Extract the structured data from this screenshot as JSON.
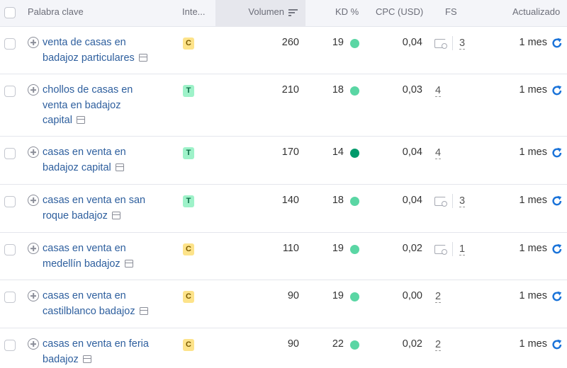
{
  "header": {
    "keyword": "Palabra clave",
    "intent": "Inte...",
    "volume": "Volumen",
    "kd": "KD %",
    "cpc": "CPC (USD)",
    "fs": "FS",
    "updated": "Actualizado"
  },
  "colors": {
    "link": "#2e5f9e",
    "kd_light": "#5ad6a4",
    "kd_dark": "#009a6b",
    "intent_commercial_bg": "#fde38a",
    "intent_transactional_bg": "#9ef2c9",
    "refresh": "#1a73d9"
  },
  "rows": [
    {
      "lines": [
        "venta de casas en",
        "badajoz particulares"
      ],
      "intent": "C",
      "volume": "260",
      "kd": "19",
      "kd_level": "light",
      "cpc": "0,04",
      "serp_feature": true,
      "fs": "3",
      "updated": "1 mes"
    },
    {
      "lines": [
        "chollos de casas en",
        "venta en badajoz",
        "capital"
      ],
      "intent": "T",
      "volume": "210",
      "kd": "18",
      "kd_level": "light",
      "cpc": "0,03",
      "serp_feature": false,
      "fs": "4",
      "updated": "1 mes"
    },
    {
      "lines": [
        "casas en venta en",
        "badajoz capital"
      ],
      "intent": "T",
      "volume": "170",
      "kd": "14",
      "kd_level": "dark",
      "cpc": "0,04",
      "serp_feature": false,
      "fs": "4",
      "updated": "1 mes"
    },
    {
      "lines": [
        "casas en venta en san",
        "roque badajoz"
      ],
      "intent": "T",
      "volume": "140",
      "kd": "18",
      "kd_level": "light",
      "cpc": "0,04",
      "serp_feature": true,
      "fs": "3",
      "updated": "1 mes"
    },
    {
      "lines": [
        "casas en venta en",
        "medellín badajoz"
      ],
      "intent": "C",
      "volume": "110",
      "kd": "19",
      "kd_level": "light",
      "cpc": "0,02",
      "serp_feature": true,
      "fs": "1",
      "updated": "1 mes"
    },
    {
      "lines": [
        "casas en venta en",
        "castilblanco badajoz"
      ],
      "intent": "C",
      "volume": "90",
      "kd": "19",
      "kd_level": "light",
      "cpc": "0,00",
      "serp_feature": false,
      "fs": "2",
      "updated": "1 mes"
    },
    {
      "lines": [
        "casas en venta en feria",
        "badajoz"
      ],
      "intent": "C",
      "volume": "90",
      "kd": "22",
      "kd_level": "light",
      "cpc": "0,02",
      "serp_feature": false,
      "fs": "2",
      "updated": "1 mes"
    }
  ]
}
